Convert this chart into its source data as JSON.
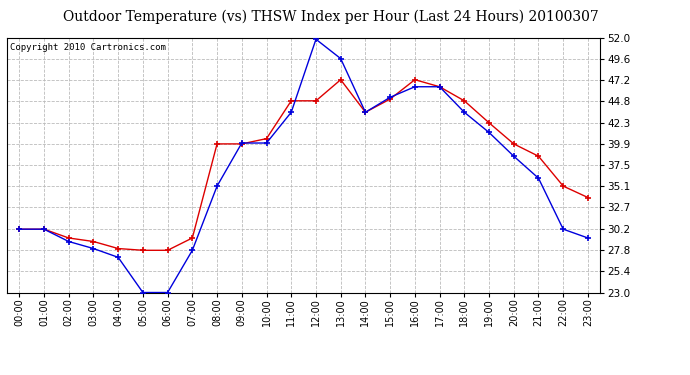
{
  "title": "Outdoor Temperature (vs) THSW Index per Hour (Last 24 Hours) 20100307",
  "copyright": "Copyright 2010 Cartronics.com",
  "hours": [
    "00:00",
    "01:00",
    "02:00",
    "03:00",
    "04:00",
    "05:00",
    "06:00",
    "07:00",
    "08:00",
    "09:00",
    "10:00",
    "11:00",
    "12:00",
    "13:00",
    "14:00",
    "15:00",
    "16:00",
    "17:00",
    "18:00",
    "19:00",
    "20:00",
    "21:00",
    "22:00",
    "23:00"
  ],
  "temp": [
    30.2,
    30.2,
    28.8,
    28.0,
    27.0,
    23.0,
    23.0,
    27.8,
    35.1,
    40.0,
    40.0,
    43.5,
    51.8,
    49.6,
    43.5,
    45.2,
    46.4,
    46.4,
    43.5,
    41.2,
    38.5,
    36.0,
    30.2,
    29.2
  ],
  "thsw": [
    30.2,
    30.2,
    29.2,
    28.8,
    28.0,
    27.8,
    27.8,
    29.2,
    39.9,
    39.9,
    40.5,
    44.8,
    44.8,
    47.2,
    43.5,
    45.0,
    47.2,
    46.4,
    44.8,
    42.3,
    39.9,
    38.5,
    35.1,
    33.8
  ],
  "ylim_min": 23.0,
  "ylim_max": 52.0,
  "yticks": [
    23.0,
    25.4,
    27.8,
    30.2,
    32.7,
    35.1,
    37.5,
    39.9,
    42.3,
    44.8,
    47.2,
    49.6,
    52.0
  ],
  "temp_color": "#0000DD",
  "thsw_color": "#DD0000",
  "bg_color": "#FFFFFF",
  "plot_bg_color": "#FFFFFF",
  "grid_color": "#BBBBBB",
  "title_fontsize": 10,
  "copyright_fontsize": 6.5
}
